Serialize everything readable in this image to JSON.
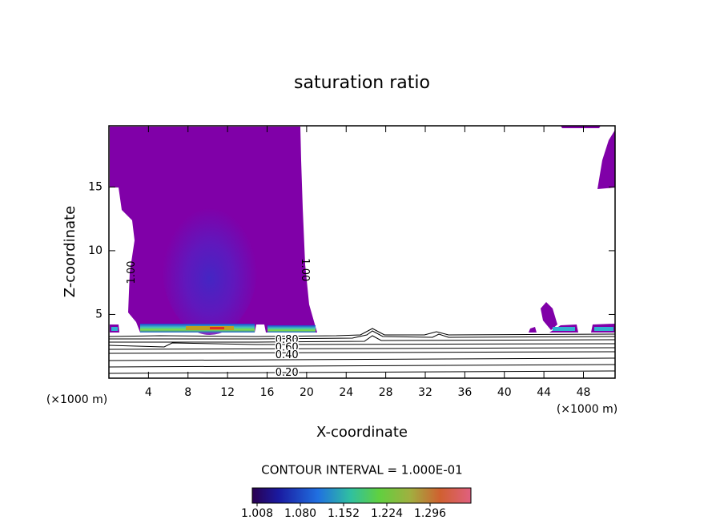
{
  "chart_data": {
    "type": "contour",
    "title": "saturation ratio",
    "xlabel": "X-coordinate",
    "ylabel": "Z-coordinate",
    "unit_label": "(×1000 m)",
    "xlim": [
      0,
      51.2
    ],
    "ylim": [
      0,
      19.8
    ],
    "xticks": [
      4,
      8,
      12,
      16,
      20,
      24,
      28,
      32,
      36,
      40,
      44,
      48
    ],
    "yticks": [
      5,
      10,
      15
    ],
    "contour_labels": [
      {
        "x": 2.3,
        "y": 8.3,
        "value": 1,
        "label": "1.00"
      },
      {
        "x": 19.8,
        "y": 8.5,
        "value": 1,
        "label": "1.00"
      },
      {
        "x": 18.0,
        "y": 3.0,
        "value": 0.8,
        "label": "0.80"
      },
      {
        "x": 18.0,
        "y": 2.4,
        "value": 0.6,
        "label": "0.60"
      },
      {
        "x": 18.0,
        "y": 1.8,
        "value": 0.4,
        "label": "0.40"
      },
      {
        "x": 18.0,
        "y": 0.4,
        "value": 0.2,
        "label": "0.20"
      }
    ],
    "contour_interval_text": "CONTOUR INTERVAL = 1.000E-01",
    "colorbar": {
      "lim": [
        1.0,
        1.364
      ],
      "ticks": [
        1.008,
        {
          "value": 1.08,
          "label": "1.080"
        },
        1.152,
        1.224,
        1.296
      ]
    }
  }
}
